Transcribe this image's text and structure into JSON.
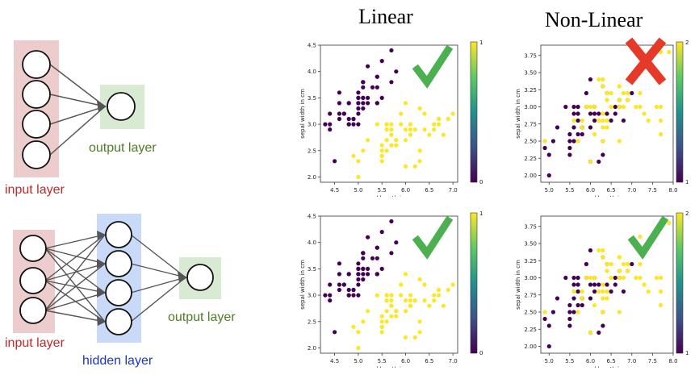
{
  "headings": {
    "linear": "Linear",
    "nonlinear": "Non-Linear"
  },
  "network_1": {
    "input_label": "input layer",
    "output_label": "output layer"
  },
  "network_2": {
    "input_label": "input layer",
    "hidden_label": "hidden layer",
    "output_label": "output layer"
  },
  "colors": {
    "class0": "#440154",
    "class1": "#fde725",
    "check": "#4caf50",
    "cross": "#e53a2a",
    "input_box": "#eccccc",
    "output_box": "#d9ead3",
    "hidden_box": "#c9daf8"
  },
  "chart_data": [
    {
      "type": "scatter",
      "id": "top-linear",
      "xlabel": "sepal length in cm",
      "ylabel": "sepal width in cm",
      "xlim": [
        4.2,
        7.1
      ],
      "ylim": [
        1.9,
        4.5
      ],
      "xticks": [
        "4.5",
        "5.0",
        "5.5",
        "6.0",
        "6.5",
        "7.0"
      ],
      "yticks": [
        "2.0",
        "2.5",
        "3.0",
        "3.5",
        "4.0",
        "4.5"
      ],
      "colorbar": {
        "min": "0",
        "max": "1"
      },
      "mark": "check",
      "series": [
        {
          "class": 0,
          "points": [
            [
              5.1,
              3.5
            ],
            [
              4.9,
              3.0
            ],
            [
              4.7,
              3.2
            ],
            [
              4.6,
              3.1
            ],
            [
              5.0,
              3.6
            ],
            [
              5.4,
              3.9
            ],
            [
              4.6,
              3.4
            ],
            [
              5.0,
              3.4
            ],
            [
              4.4,
              2.9
            ],
            [
              4.9,
              3.1
            ],
            [
              5.4,
              3.7
            ],
            [
              4.8,
              3.4
            ],
            [
              4.8,
              3.0
            ],
            [
              4.3,
              3.0
            ],
            [
              5.8,
              4.0
            ],
            [
              5.7,
              4.4
            ],
            [
              5.4,
              3.9
            ],
            [
              5.1,
              3.5
            ],
            [
              5.7,
              3.8
            ],
            [
              5.1,
              3.8
            ],
            [
              5.4,
              3.4
            ],
            [
              5.1,
              3.7
            ],
            [
              4.6,
              3.6
            ],
            [
              5.1,
              3.3
            ],
            [
              4.8,
              3.4
            ],
            [
              5.0,
              3.0
            ],
            [
              5.0,
              3.4
            ],
            [
              5.2,
              3.5
            ],
            [
              5.2,
              3.4
            ],
            [
              4.7,
              3.2
            ],
            [
              4.8,
              3.1
            ],
            [
              5.4,
              3.4
            ],
            [
              5.2,
              4.1
            ],
            [
              5.5,
              4.2
            ],
            [
              4.9,
              3.1
            ],
            [
              5.0,
              3.2
            ],
            [
              5.5,
              3.5
            ],
            [
              4.4,
              3.0
            ],
            [
              5.1,
              3.4
            ],
            [
              5.0,
              3.5
            ],
            [
              4.5,
              2.3
            ],
            [
              4.4,
              3.2
            ],
            [
              5.0,
              3.5
            ],
            [
              5.1,
              3.8
            ],
            [
              4.8,
              3.0
            ],
            [
              5.1,
              3.8
            ],
            [
              4.6,
              3.2
            ],
            [
              5.3,
              3.7
            ],
            [
              5.0,
              3.3
            ]
          ]
        },
        {
          "class": 1,
          "points": [
            [
              7.0,
              3.2
            ],
            [
              6.4,
              3.2
            ],
            [
              6.9,
              3.1
            ],
            [
              5.5,
              2.3
            ],
            [
              6.5,
              2.8
            ],
            [
              5.7,
              2.8
            ],
            [
              6.3,
              3.3
            ],
            [
              4.9,
              2.4
            ],
            [
              6.6,
              2.9
            ],
            [
              5.2,
              2.7
            ],
            [
              5.0,
              2.0
            ],
            [
              5.9,
              3.0
            ],
            [
              6.0,
              2.2
            ],
            [
              6.1,
              2.9
            ],
            [
              5.6,
              2.9
            ],
            [
              6.7,
              3.1
            ],
            [
              5.6,
              3.0
            ],
            [
              5.8,
              2.7
            ],
            [
              6.2,
              2.2
            ],
            [
              5.6,
              2.5
            ],
            [
              5.9,
              3.2
            ],
            [
              6.1,
              2.8
            ],
            [
              6.3,
              2.5
            ],
            [
              6.1,
              2.8
            ],
            [
              6.4,
              2.9
            ],
            [
              6.6,
              3.0
            ],
            [
              6.8,
              2.8
            ],
            [
              6.7,
              3.0
            ],
            [
              6.0,
              2.9
            ],
            [
              5.7,
              2.6
            ],
            [
              5.5,
              2.4
            ],
            [
              5.5,
              2.4
            ],
            [
              5.8,
              2.7
            ],
            [
              6.0,
              2.7
            ],
            [
              5.4,
              3.0
            ],
            [
              6.0,
              3.4
            ],
            [
              6.7,
              3.1
            ],
            [
              6.3,
              2.3
            ],
            [
              5.6,
              3.0
            ],
            [
              5.5,
              2.5
            ],
            [
              5.5,
              2.6
            ],
            [
              6.1,
              3.0
            ],
            [
              5.8,
              2.6
            ],
            [
              5.0,
              2.3
            ],
            [
              5.6,
              2.7
            ],
            [
              5.7,
              3.0
            ],
            [
              5.7,
              2.9
            ],
            [
              6.2,
              2.9
            ],
            [
              5.1,
              2.5
            ],
            [
              5.7,
              2.8
            ]
          ]
        }
      ]
    },
    {
      "type": "scatter",
      "id": "top-nonlinear",
      "xlabel": "sepal length in cm",
      "ylabel": "sepal width in cm",
      "xlim": [
        4.8,
        8.0
      ],
      "ylim": [
        1.9,
        3.9
      ],
      "xticks": [
        "5.0",
        "5.5",
        "6.0",
        "6.5",
        "7.0",
        "7.5",
        "8.0"
      ],
      "yticks": [
        "2.00",
        "2.25",
        "2.50",
        "2.75",
        "3.00",
        "3.25",
        "3.50",
        "3.75"
      ],
      "colorbar": {
        "min": "1",
        "max": "2"
      },
      "mark": "cross",
      "series": [
        {
          "class": 0,
          "points": [
            [
              7.0,
              3.2
            ],
            [
              6.4,
              3.2
            ],
            [
              6.9,
              3.1
            ],
            [
              5.5,
              2.3
            ],
            [
              6.5,
              2.8
            ],
            [
              5.7,
              2.8
            ],
            [
              6.3,
              3.3
            ],
            [
              4.9,
              2.4
            ],
            [
              6.6,
              2.9
            ],
            [
              5.2,
              2.7
            ],
            [
              5.0,
              2.0
            ],
            [
              5.9,
              3.0
            ],
            [
              6.0,
              2.2
            ],
            [
              6.1,
              2.9
            ],
            [
              5.6,
              2.9
            ],
            [
              6.7,
              3.1
            ],
            [
              5.6,
              3.0
            ],
            [
              5.8,
              2.7
            ],
            [
              6.2,
              2.2
            ],
            [
              5.6,
              2.5
            ],
            [
              5.9,
              3.2
            ],
            [
              6.1,
              2.8
            ],
            [
              6.3,
              2.5
            ],
            [
              6.4,
              2.9
            ],
            [
              6.6,
              3.0
            ],
            [
              6.8,
              2.8
            ],
            [
              6.7,
              3.0
            ],
            [
              6.0,
              2.9
            ],
            [
              5.7,
              2.6
            ],
            [
              5.5,
              2.4
            ],
            [
              5.8,
              2.7
            ],
            [
              6.0,
              2.7
            ],
            [
              5.4,
              3.0
            ],
            [
              6.0,
              3.4
            ],
            [
              6.3,
              2.3
            ],
            [
              5.5,
              2.5
            ],
            [
              5.5,
              2.6
            ],
            [
              6.1,
              3.0
            ],
            [
              5.8,
              2.6
            ],
            [
              5.0,
              2.3
            ],
            [
              5.6,
              2.7
            ],
            [
              5.7,
              3.0
            ],
            [
              5.7,
              2.9
            ],
            [
              6.2,
              2.9
            ],
            [
              5.1,
              2.5
            ]
          ]
        },
        {
          "class": 1,
          "points": [
            [
              6.3,
              3.3
            ],
            [
              5.8,
              2.7
            ],
            [
              7.1,
              3.0
            ],
            [
              6.3,
              2.9
            ],
            [
              6.5,
              3.0
            ],
            [
              7.6,
              3.0
            ],
            [
              4.9,
              2.5
            ],
            [
              7.3,
              2.9
            ],
            [
              6.7,
              2.5
            ],
            [
              7.2,
              3.6
            ],
            [
              6.5,
              3.2
            ],
            [
              6.4,
              2.7
            ],
            [
              6.8,
              3.0
            ],
            [
              5.7,
              2.5
            ],
            [
              5.8,
              2.8
            ],
            [
              6.4,
              3.2
            ],
            [
              6.5,
              3.0
            ],
            [
              7.7,
              3.8
            ],
            [
              7.7,
              2.6
            ],
            [
              6.0,
              2.2
            ],
            [
              6.9,
              3.2
            ],
            [
              5.6,
              2.8
            ],
            [
              7.7,
              2.8
            ],
            [
              6.3,
              2.7
            ],
            [
              6.7,
              3.3
            ],
            [
              7.2,
              3.2
            ],
            [
              6.2,
              2.8
            ],
            [
              6.1,
              3.0
            ],
            [
              6.4,
              2.8
            ],
            [
              7.2,
              3.0
            ],
            [
              7.4,
              2.8
            ],
            [
              7.9,
              3.8
            ],
            [
              6.3,
              2.8
            ],
            [
              6.1,
              2.6
            ],
            [
              7.7,
              3.0
            ],
            [
              6.3,
              3.4
            ],
            [
              6.4,
              3.1
            ],
            [
              6.0,
              3.0
            ],
            [
              6.9,
              3.1
            ],
            [
              6.7,
              3.1
            ],
            [
              6.9,
              3.1
            ],
            [
              6.8,
              3.2
            ],
            [
              6.7,
              3.3
            ],
            [
              6.7,
              3.0
            ],
            [
              6.3,
              2.5
            ],
            [
              6.5,
              3.0
            ],
            [
              6.2,
              3.4
            ],
            [
              5.9,
              3.0
            ]
          ]
        }
      ]
    },
    {
      "type": "scatter",
      "id": "bottom-linear",
      "xlabel": "sepal length in cm",
      "ylabel": "sepal width in cm",
      "xlim": [
        4.2,
        7.1
      ],
      "ylim": [
        1.9,
        4.5
      ],
      "xticks": [
        "4.5",
        "5.0",
        "5.5",
        "6.0",
        "6.5",
        "7.0"
      ],
      "yticks": [
        "2.0",
        "2.5",
        "3.0",
        "3.5",
        "4.0",
        "4.5"
      ],
      "colorbar": {
        "min": "0",
        "max": "1"
      },
      "mark": "check",
      "same_points_as": "top-linear"
    },
    {
      "type": "scatter",
      "id": "bottom-nonlinear",
      "xlabel": "sepal length in cm",
      "ylabel": "sepal width in cm",
      "xlim": [
        4.8,
        8.0
      ],
      "ylim": [
        1.9,
        3.9
      ],
      "xticks": [
        "5.0",
        "5.5",
        "6.0",
        "6.5",
        "7.0",
        "7.5",
        "8.0"
      ],
      "yticks": [
        "2.00",
        "2.25",
        "2.50",
        "2.75",
        "3.00",
        "3.25",
        "3.50",
        "3.75"
      ],
      "colorbar": {
        "min": "1",
        "max": "2"
      },
      "mark": "check",
      "same_points_as": "top-nonlinear"
    }
  ]
}
